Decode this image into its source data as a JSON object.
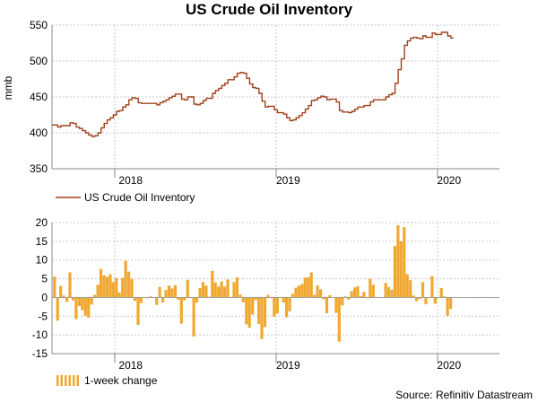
{
  "title": "US Crude Oil Inventory",
  "source": "Source: Refinitiv Datastream",
  "chart_data": [
    {
      "type": "line",
      "ylabel": "mmb",
      "ylim": [
        350,
        550
      ],
      "yticks": [
        350,
        400,
        450,
        500,
        550
      ],
      "xticks": [
        "2018",
        "2019",
        "2020"
      ],
      "grid": true,
      "legend": "bottom-left",
      "color": "#a0401a",
      "series": [
        {
          "name": "US Crude Oil Inventory",
          "x_start": "2017-08-18",
          "interval": "weekly",
          "values": [
            411,
            408,
            410,
            410,
            410,
            414,
            413,
            408,
            406,
            403,
            400,
            397,
            395,
            396,
            400,
            407,
            413,
            418,
            421,
            425,
            430,
            431,
            436,
            439,
            446,
            449,
            448,
            442,
            441,
            441,
            441,
            441,
            441,
            439,
            442,
            444,
            446,
            449,
            451,
            454,
            454,
            447,
            446,
            450,
            450,
            440,
            439,
            441,
            445,
            448,
            448,
            455,
            459,
            462,
            466,
            469,
            474,
            474,
            478,
            483,
            484,
            483,
            476,
            468,
            463,
            462,
            455,
            444,
            436,
            437,
            437,
            432,
            428,
            428,
            426,
            421,
            417,
            418,
            421,
            424,
            428,
            433,
            438,
            445,
            446,
            449,
            451,
            450,
            446,
            447,
            447,
            443,
            431,
            429,
            429,
            428,
            430,
            433,
            436,
            436,
            438,
            438,
            443,
            446,
            446,
            446,
            446,
            450,
            453,
            455,
            469,
            488,
            503,
            522,
            528,
            532,
            533,
            532,
            531,
            535,
            533,
            533,
            539,
            537,
            537,
            540,
            540,
            535,
            532
          ]
        }
      ]
    },
    {
      "type": "bar",
      "ylim": [
        -15,
        20
      ],
      "yticks": [
        -15,
        -10,
        -5,
        0,
        5,
        10,
        15,
        20
      ],
      "xticks": [
        "2018",
        "2019",
        "2020"
      ],
      "grid": true,
      "legend": "bottom-left",
      "color": "#f0a830",
      "series": [
        {
          "name": "1-week change",
          "x_start": "2017-08-18",
          "interval": "weekly",
          "values": [
            5.6,
            -6.2,
            3.1,
            0.5,
            -1.2,
            6.7,
            -0.8,
            -5.8,
            -2.3,
            -3.4,
            -4.9,
            -5.4,
            -1.9,
            0.7,
            3.4,
            7.6,
            5.9,
            5.5,
            6.2,
            4.1,
            5.2,
            1.3,
            5.2,
            9.8,
            6.9,
            5.0,
            -0.9,
            -7.3,
            -1.5,
            0.1,
            -0.2,
            0.3,
            0.1,
            -2.0,
            2.8,
            -1.4,
            2.0,
            3.2,
            2.4,
            3.3,
            -0.6,
            -7.0,
            -0.8,
            4.7,
            -0.2,
            -10.4,
            -1.4,
            2.5,
            4.1,
            3.2,
            0.2,
            7.1,
            4.0,
            2.9,
            4.3,
            2.9,
            4.8,
            0.1,
            4.1,
            5.4,
            0.8,
            -1.3,
            -7.2,
            -8.1,
            -4.6,
            -0.7,
            -7.1,
            -11.1,
            -7.9,
            0.7,
            -0.2,
            -5.1,
            -4.3,
            -0.1,
            -1.4,
            -5.3,
            -3.7,
            1.0,
            2.6,
            3.2,
            3.6,
            5.3,
            5.4,
            6.7,
            0.7,
            3.2,
            2.2,
            -0.5,
            -4.2,
            0.6,
            0.1,
            -4.1,
            -11.8,
            -2.1,
            0.3,
            -0.6,
            1.7,
            2.7,
            3.0,
            0.4,
            1.5,
            -0.2,
            5.0,
            3.4,
            0.0,
            -0.1,
            0.1,
            3.9,
            2.8,
            2.1,
            13.8,
            19.3,
            15.0,
            18.8,
            6.2,
            4.6,
            0.5,
            -1.0,
            -0.4,
            4.1,
            -1.8,
            -0.2,
            5.7,
            -1.7,
            -0.1,
            2.5,
            0.3,
            -4.9,
            -3.1
          ]
        }
      ]
    }
  ]
}
